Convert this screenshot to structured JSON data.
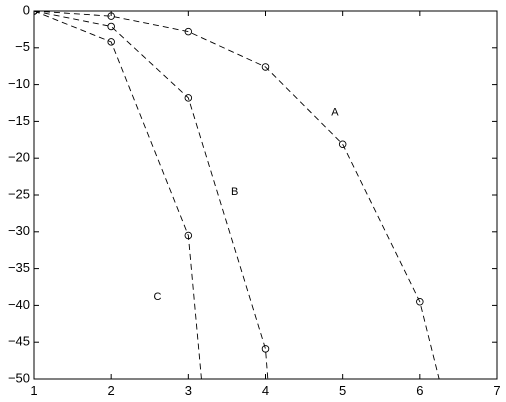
{
  "chart_data": {
    "type": "line",
    "title": "",
    "xlabel": "",
    "ylabel": "",
    "xlim": [
      1,
      7
    ],
    "ylim": [
      -50,
      0
    ],
    "x_ticks": [
      1,
      2,
      3,
      4,
      5,
      6,
      7
    ],
    "y_ticks": [
      0,
      -5,
      -10,
      -15,
      -20,
      -25,
      -30,
      -35,
      -40,
      -45,
      -50
    ],
    "x_tick_labels": [
      "1",
      "2",
      "3",
      "4",
      "5",
      "6",
      "7"
    ],
    "y_tick_labels": [
      "0",
      "−5",
      "−10",
      "−15",
      "−20",
      "−25",
      "−30",
      "−35",
      "−40",
      "−45",
      "−50"
    ],
    "grid": false,
    "legend": "none",
    "line_style": "dashed",
    "marker": "open-circle",
    "line_color": "#000000",
    "series": [
      {
        "label": "A",
        "points": [
          [
            1,
            0
          ],
          [
            2,
            -0.7
          ],
          [
            3,
            -2.8
          ],
          [
            4,
            -7.6
          ],
          [
            5,
            -18.1
          ],
          [
            6,
            -39.5
          ],
          [
            6.25,
            -50
          ]
        ],
        "markers": [
          [
            1,
            0
          ],
          [
            2,
            -0.7
          ],
          [
            3,
            -2.8
          ],
          [
            4,
            -7.6
          ],
          [
            5,
            -18.1
          ],
          [
            6,
            -39.5
          ]
        ],
        "label_at": [
          4.9,
          -13.8
        ]
      },
      {
        "label": "B",
        "points": [
          [
            1,
            0
          ],
          [
            2,
            -2.1
          ],
          [
            3,
            -11.8
          ],
          [
            4,
            -45.9
          ],
          [
            4.03,
            -50
          ]
        ],
        "markers": [
          [
            1,
            0
          ],
          [
            2,
            -2.1
          ],
          [
            3,
            -11.8
          ],
          [
            4,
            -45.9
          ]
        ],
        "label_at": [
          3.6,
          -24.6
        ]
      },
      {
        "label": "C",
        "points": [
          [
            1,
            0
          ],
          [
            2,
            -4.2
          ],
          [
            3,
            -30.5
          ],
          [
            3.17,
            -50
          ]
        ],
        "markers": [
          [
            1,
            0
          ],
          [
            2,
            -4.2
          ],
          [
            3,
            -30.5
          ]
        ],
        "label_at": [
          2.6,
          -38.9
        ]
      }
    ]
  }
}
